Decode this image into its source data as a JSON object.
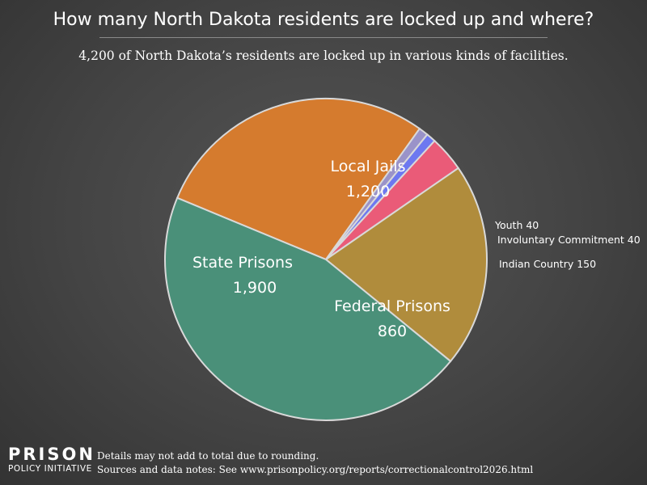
{
  "header": {
    "title": "How many North Dakota residents are locked up and where?",
    "subtitle": "4,200 of North Dakota’s residents are locked up in various kinds of facilities."
  },
  "chart_data": {
    "type": "pie",
    "title": "How many North Dakota residents are locked up and where?",
    "total": 4200,
    "slices": [
      {
        "name": "Local Jails",
        "value": 1200,
        "value_label": "1,200",
        "color": "#d57b2e",
        "label_position": "inside"
      },
      {
        "name": "Youth",
        "value": 40,
        "value_label": "40",
        "color": "#9a93c9",
        "label_position": "outside"
      },
      {
        "name": "Involuntary Commitment",
        "value": 40,
        "value_label": "40",
        "color": "#6d78f0",
        "label_position": "outside"
      },
      {
        "name": "Indian Country",
        "value": 150,
        "value_label": "150",
        "color": "#ea5b78",
        "label_position": "outside"
      },
      {
        "name": "Federal Prisons",
        "value": 860,
        "value_label": "860",
        "color": "#b08c3c",
        "label_position": "inside"
      },
      {
        "name": "State Prisons",
        "value": 1900,
        "value_label": "1,900",
        "color": "#4a9079",
        "label_position": "inside"
      }
    ]
  },
  "footer": {
    "logo_line1": "PRISON",
    "logo_line2": "POLICY INITIATIVE",
    "note_line1": "Details may not add to total due to rounding.",
    "note_line2": "Sources and data notes: See www.prisonpolicy.org/reports/correctionalcontrol2026.html"
  }
}
